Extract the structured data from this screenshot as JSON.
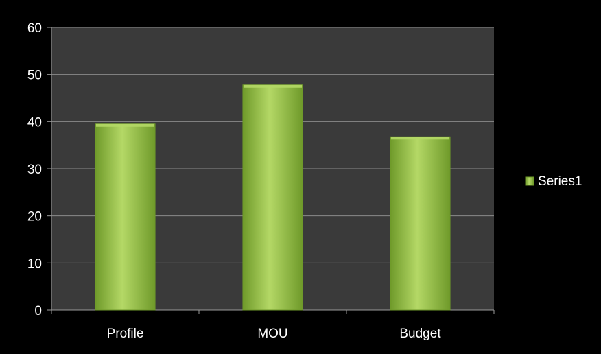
{
  "colors": {
    "background": "#000000",
    "plot_area": "#3a3a3a",
    "gridline": "#8a8a8a",
    "axis": "#9a9a9a",
    "bar_light": "#b4d866",
    "bar_mid": "#9bc447",
    "bar_dark": "#6f9a2a",
    "text": "#ffffff"
  },
  "chart_data": {
    "type": "bar",
    "categories": [
      "Profile",
      "MOU",
      "Budget"
    ],
    "series": [
      {
        "name": "Series1",
        "values": [
          39.5,
          47.8,
          36.8
        ]
      }
    ],
    "y_ticks": [
      "0",
      "10",
      "20",
      "30",
      "40",
      "50",
      "60"
    ],
    "ylim": [
      0,
      60
    ],
    "grid": true,
    "legend": {
      "position": "right",
      "entries": [
        "Series1"
      ]
    }
  }
}
